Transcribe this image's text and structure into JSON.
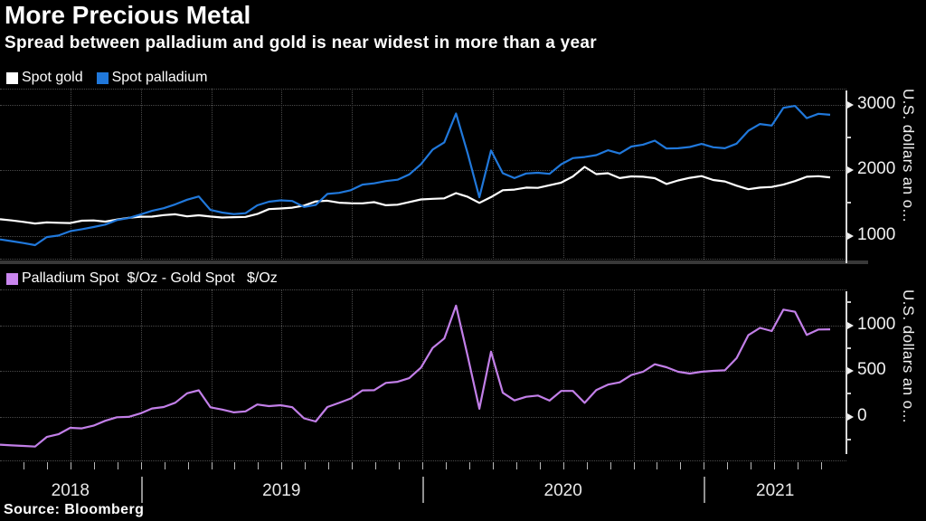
{
  "header": {
    "title": "More Precious Metal",
    "subtitle": "Spread between palladium and gold is near widest in more than a year"
  },
  "source": "Source: Bloomberg",
  "colors": {
    "background": "#000000",
    "gold": "#ffffff",
    "palladium": "#2078db",
    "spread": "#c27fe8",
    "spread_swatch": "#ca86ef",
    "grid": "#4a4a4a",
    "axis_line": "#d8d8d8",
    "tick_label": "#f2f2f2"
  },
  "x_axis": {
    "start": "2018-07",
    "end": "2021-06",
    "sampling": "semi-monthly",
    "year_labels": [
      "2018",
      "2019",
      "2020",
      "2021"
    ]
  },
  "chart_data": [
    {
      "type": "line",
      "title": "More Precious Metal",
      "subtitle": "Spread between palladium and gold is near widest in more than a year",
      "x_range": [
        "2018-07",
        "2021-06"
      ],
      "points_per_month": 2,
      "ylabel": "U.S. dollars an o...",
      "yticks_major": [
        1000,
        2000,
        3000
      ],
      "yticks_minor": [
        1500,
        2500
      ],
      "ylim": [
        635,
        3241
      ],
      "grid": true,
      "legend_position": "top-left",
      "series": [
        {
          "name": "Spot gold",
          "color_key": "gold",
          "values": [
            1250,
            1232,
            1210,
            1185,
            1202,
            1196,
            1192,
            1228,
            1232,
            1214,
            1246,
            1272,
            1288,
            1290,
            1314,
            1326,
            1294,
            1311,
            1291,
            1276,
            1282,
            1286,
            1330,
            1404,
            1414,
            1426,
            1458,
            1522,
            1532,
            1502,
            1494,
            1492,
            1510,
            1464,
            1472,
            1512,
            1552,
            1562,
            1568,
            1648,
            1592,
            1500,
            1588,
            1692,
            1702,
            1732,
            1728,
            1768,
            1808,
            1902,
            2048,
            1938,
            1952,
            1878,
            1904,
            1898,
            1876,
            1788,
            1842,
            1882,
            1908,
            1848,
            1826,
            1762,
            1708,
            1732,
            1742,
            1778,
            1832,
            1898,
            1906,
            1888
          ]
        },
        {
          "name": "Spot palladium",
          "color_key": "palladium",
          "values": [
            942,
            916,
            888,
            856,
            978,
            1002,
            1068,
            1098,
            1132,
            1168,
            1238,
            1268,
            1322,
            1378,
            1418,
            1478,
            1548,
            1598,
            1392,
            1352,
            1328,
            1342,
            1462,
            1518,
            1538,
            1528,
            1438,
            1468,
            1636,
            1652,
            1692,
            1778,
            1798,
            1832,
            1852,
            1932,
            2088,
            2312,
            2422,
            2862,
            2252,
            1585,
            2298,
            1952,
            1878,
            1948,
            1958,
            1942,
            2088,
            2182,
            2198,
            2228,
            2302,
            2252,
            2358,
            2388,
            2448,
            2328,
            2332,
            2352,
            2398,
            2348,
            2332,
            2402,
            2598,
            2702,
            2678,
            2948,
            2978,
            2792,
            2858,
            2842
          ]
        }
      ]
    },
    {
      "type": "line",
      "title": "Palladium minus gold spread",
      "legend_label": "Palladium Spot  $/Oz - Gold Spot   $/Oz",
      "x_range": [
        "2018-07",
        "2021-06"
      ],
      "points_per_month": 2,
      "ylabel": "U.S. dollars an o...",
      "yticks_major": [
        0,
        500,
        1000
      ],
      "yticks_minor": [
        -250,
        250,
        750,
        1250
      ],
      "ylim": [
        -490,
        1391
      ],
      "grid": true,
      "legend_position": "top-left",
      "series": [
        {
          "name": "Palladium Spot $/Oz - Gold Spot $/Oz",
          "color_key": "spread",
          "values": [
            -308,
            -316,
            -322,
            -329,
            -224,
            -194,
            -124,
            -130,
            -100,
            -46,
            -8,
            -4,
            34,
            88,
            104,
            152,
            254,
            287,
            101,
            76,
            46,
            56,
            132,
            114,
            124,
            102,
            -20,
            -54,
            104,
            150,
            198,
            286,
            288,
            368,
            380,
            420,
            536,
            750,
            854,
            1214,
            660,
            85,
            710,
            260,
            176,
            216,
            230,
            174,
            280,
            280,
            150,
            290,
            350,
            374,
            454,
            490,
            572,
            540,
            490,
            470,
            490,
            500,
            506,
            640,
            890,
            970,
            936,
            1170,
            1146,
            894,
            952,
            954
          ]
        }
      ]
    }
  ]
}
